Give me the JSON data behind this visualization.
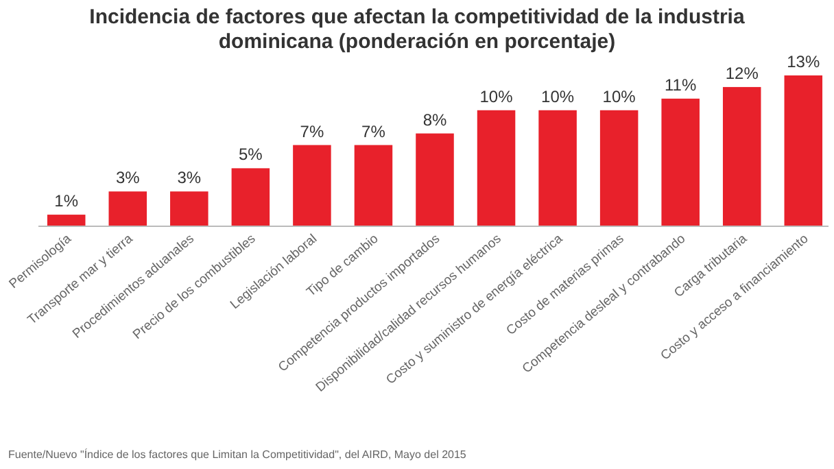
{
  "chart_data": {
    "type": "bar",
    "title": "Incidencia de factores que afectan la competitividad de la industria dominicana (ponderación en porcentaje)",
    "categories": [
      "Permisología",
      "Transporte mar y tierra",
      "Procedimientos aduanales",
      "Precio de los combustibles",
      "Legislación laboral",
      "Tipo de cambio",
      "Competencia productos importados",
      "Disponibilidad/calidad recursos humanos",
      "Costo y suministro de energía eléctrica",
      "Costo de materias primas",
      "Competencia desleal y contrabando",
      "Carga tributaria",
      "Costo y acceso a financiamiento"
    ],
    "values": [
      1,
      3,
      3,
      5,
      7,
      7,
      8,
      10,
      10,
      10,
      11,
      12,
      13
    ],
    "value_labels": [
      "1%",
      "3%",
      "3%",
      "5%",
      "7%",
      "7%",
      "8%",
      "10%",
      "10%",
      "10%",
      "11%",
      "12%",
      "13%"
    ],
    "color": "#e8212b",
    "annotations": [
      "Fuente/Nuevo \"Índice de los factores que Limitan la Competitividad\", del AIRD, Mayo del 2015"
    ]
  }
}
